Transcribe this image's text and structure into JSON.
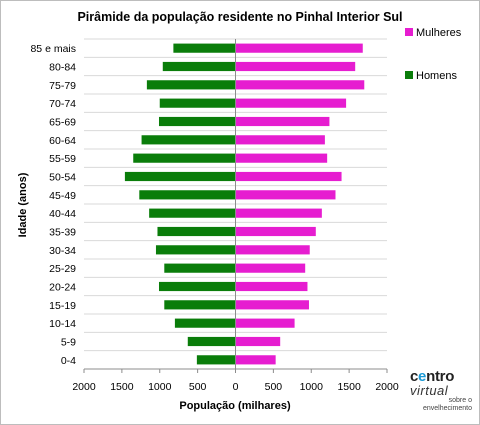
{
  "chart_data": {
    "type": "bar",
    "orientation": "horizontal",
    "layout": "population-pyramid",
    "title": "Pirâmide da população  residente no Pinhal  Interior Sul",
    "xlabel": "População (milhares)",
    "ylabel": "Idade (anos)",
    "xlim": [
      -2000,
      2000
    ],
    "x_tick_values": [
      -2000,
      -1500,
      -1000,
      -500,
      0,
      500,
      1000,
      1500,
      2000
    ],
    "x_tick_labels": [
      "2000",
      "1500",
      "1000",
      "500",
      "0",
      "500",
      "1000",
      "1500",
      "2000"
    ],
    "grid": "horizontal",
    "legend_position": "right",
    "categories": [
      "0-4",
      "5-9",
      "10-14",
      "15-19",
      "20-24",
      "25-29",
      "30-34",
      "35-39",
      "40-44",
      "45-49",
      "50-54",
      "55-59",
      "60-64",
      "65-69",
      "70-74",
      "75-79",
      "80-84",
      "85 e mais"
    ],
    "series": [
      {
        "name": "Mulheres",
        "color": "#e61dd0",
        "side": "right",
        "values": [
          530,
          590,
          780,
          970,
          950,
          920,
          980,
          1060,
          1140,
          1320,
          1400,
          1210,
          1180,
          1240,
          1460,
          1700,
          1580,
          1680
        ]
      },
      {
        "name": "Homens",
        "color": "#0a7d0a",
        "side": "left",
        "values": [
          510,
          630,
          800,
          940,
          1010,
          940,
          1050,
          1030,
          1140,
          1270,
          1460,
          1350,
          1240,
          1010,
          1000,
          1170,
          960,
          820
        ]
      }
    ]
  },
  "logo": {
    "line1_a": "c",
    "line1_b": "e",
    "line1_c": "ntro",
    "line2": "virtual",
    "line3a": "sobre o",
    "line3b": "envelhecimento"
  }
}
